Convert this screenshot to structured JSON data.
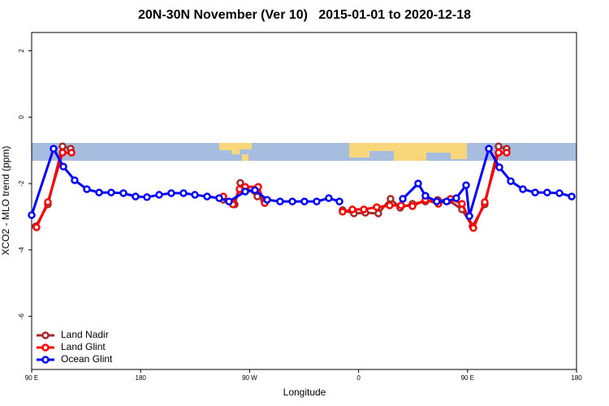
{
  "chart_data": {
    "type": "line",
    "title": "20N-30N November (Ver 10)   2015-01-01 to 2020-12-18",
    "x_label": "Longitude",
    "y_label": "XCO2 - MLO trend (ppm)",
    "xlim": [
      90,
      540
    ],
    "ylim": [
      -7.6,
      2.55
    ],
    "xticks": [
      {
        "value": 90,
        "label": "90 E"
      },
      180,
      {
        "value": 270,
        "label": "90 W"
      },
      {
        "value": 360,
        "label": "0"
      },
      {
        "value": 450,
        "label": "90 E"
      },
      {
        "value": 540,
        "label": "180"
      }
    ],
    "yticks": [
      -6,
      -4,
      -2,
      0,
      2
    ],
    "legend": "bottom-left",
    "series": [
      {
        "name": "Land Nadir",
        "color": "#a52a2a",
        "x": [
          93.4,
          103.4,
          115.5,
          122.2,
          null,
          248.3,
          257.7,
          262.3,
          276.4,
          281.8,
          null,
          346.8,
          356.2,
          365.6,
          376.3,
          386.4,
          394.4,
          404.5,
          415.2,
          425.3,
          434.7,
          445.4,
          454.1,
          464.2,
          475.6,
          482.3
        ],
        "values": [
          -3.29,
          -2.63,
          -0.88,
          -0.95,
          null,
          -2.49,
          -2.63,
          -1.98,
          -2.39,
          -2.49,
          null,
          -2.8,
          -2.9,
          -2.88,
          -2.9,
          -2.46,
          -2.73,
          -2.61,
          -2.54,
          -2.49,
          -2.51,
          -2.78,
          -3.29,
          -2.63,
          -0.88,
          -0.95
        ]
      },
      {
        "name": "Land Glint",
        "color": "#ff0000",
        "x": [
          94.0,
          103.4,
          115.5,
          122.9,
          null,
          248.3,
          256.3,
          261.7,
          266.4,
          277.1,
          282.5,
          null,
          346.8,
          354.9,
          364.3,
          375.0,
          385.7,
          395.1,
          404.5,
          415.2,
          425.9,
          436.0,
          445.4,
          454.8,
          464.2,
          475.6,
          482.3
        ],
        "values": [
          -3.32,
          -2.56,
          -1.07,
          -1.07,
          null,
          -2.39,
          -2.63,
          -2.17,
          -2.1,
          -2.1,
          -2.59,
          null,
          -2.85,
          -2.78,
          -2.78,
          -2.71,
          -2.66,
          -2.66,
          -2.68,
          -2.49,
          -2.61,
          -2.46,
          -2.61,
          -3.34,
          -2.56,
          -1.07,
          -1.07
        ]
      },
      {
        "name": "Ocean Glint",
        "color": "#0000ff",
        "x": [
          90,
          108.1,
          116.2,
          125.5,
          135.6,
          145.7,
          155.7,
          165.8,
          175.8,
          185.2,
          195.3,
          205.3,
          215.4,
          224.8,
          234.9,
          244.9,
          253.0,
          266.4,
          274.4,
          284.5,
          295.2,
          305.3,
          315.3,
          325.4,
          335.4,
          344.2,
          null,
          396.5,
          409.2,
          415.2,
          424.6,
          432.7,
          440.7,
          448.8,
          451.5,
          467.6,
          476.3,
          485.7,
          495.7,
          505.8,
          515.8,
          525.9,
          536.0
        ],
        "values": [
          -2.95,
          -0.95,
          -1.49,
          -1.9,
          -2.17,
          -2.27,
          -2.27,
          -2.29,
          -2.39,
          -2.41,
          -2.34,
          -2.29,
          -2.29,
          -2.34,
          -2.39,
          -2.44,
          -2.54,
          -2.24,
          -2.2,
          -2.49,
          -2.54,
          -2.54,
          -2.54,
          -2.54,
          -2.44,
          -2.54,
          null,
          -2.46,
          -2.0,
          -2.37,
          -2.54,
          -2.54,
          -2.44,
          -2.05,
          -2.98,
          -0.95,
          -1.51,
          -1.93,
          -2.17,
          -2.27,
          -2.27,
          -2.29,
          -2.39
        ]
      }
    ]
  }
}
